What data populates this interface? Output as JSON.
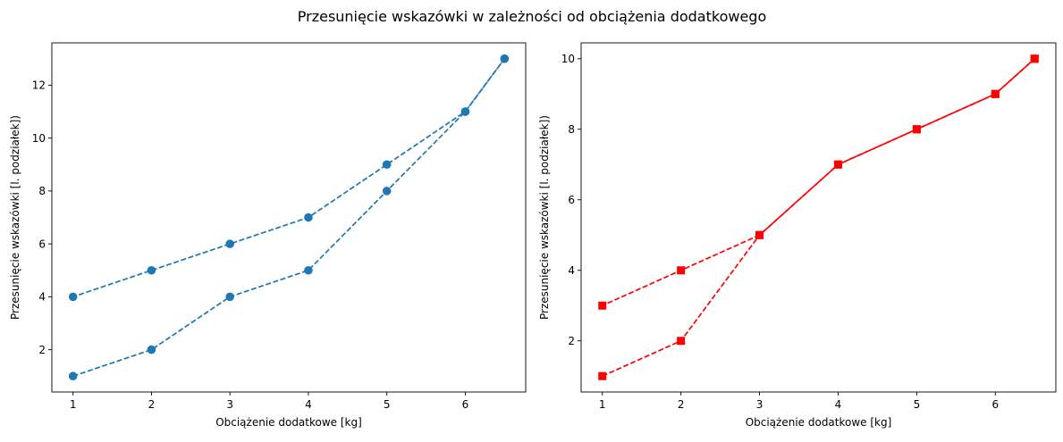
{
  "figure": {
    "title": "Przesunięcie wskazówki w zależności od obciążenia dodatkowego"
  },
  "chart_data": [
    {
      "type": "line",
      "xlabel": "Obciążenie dodatkowe [kg]",
      "ylabel": "Przesunięcie wskazówki [l. podziałek])",
      "xlim": [
        0.73,
        6.77
      ],
      "ylim": [
        0.4,
        13.6
      ],
      "xticks": [
        1,
        2,
        3,
        4,
        5,
        6
      ],
      "yticks": [
        2,
        4,
        6,
        8,
        10,
        12
      ],
      "grid": false,
      "color": "#1f77b4",
      "marker": "circle",
      "series": [
        {
          "x": [
            1,
            2,
            3,
            4,
            5,
            6,
            6.5
          ],
          "y": [
            1,
            2,
            4,
            5,
            8,
            11,
            13
          ],
          "style": "dashed"
        },
        {
          "x": [
            6.5,
            6,
            5,
            4,
            3,
            2,
            1
          ],
          "y": [
            13,
            11,
            9,
            7,
            6,
            5,
            4
          ],
          "style": "dashed"
        }
      ]
    },
    {
      "type": "line",
      "xlabel": "Obciążenie dodatkowe [kg]",
      "ylabel": "Przesunięcie wskazówki [l. podziałek])",
      "xlim": [
        0.73,
        6.77
      ],
      "ylim": [
        0.55,
        10.45
      ],
      "xticks": [
        1,
        2,
        3,
        4,
        5,
        6
      ],
      "yticks": [
        2,
        4,
        6,
        8,
        10
      ],
      "grid": false,
      "color": "#ff0000",
      "marker": "square",
      "series": [
        {
          "x": [
            1,
            2,
            3,
            4,
            5,
            6,
            6.5
          ],
          "y": [
            1,
            2,
            5,
            7,
            8,
            9,
            10
          ],
          "style": "dashed"
        },
        {
          "x": [
            6.5,
            6,
            5,
            4,
            3,
            2,
            1
          ],
          "y": [
            10,
            9,
            8,
            7,
            5,
            4,
            3
          ],
          "style": "dashed"
        }
      ]
    }
  ]
}
